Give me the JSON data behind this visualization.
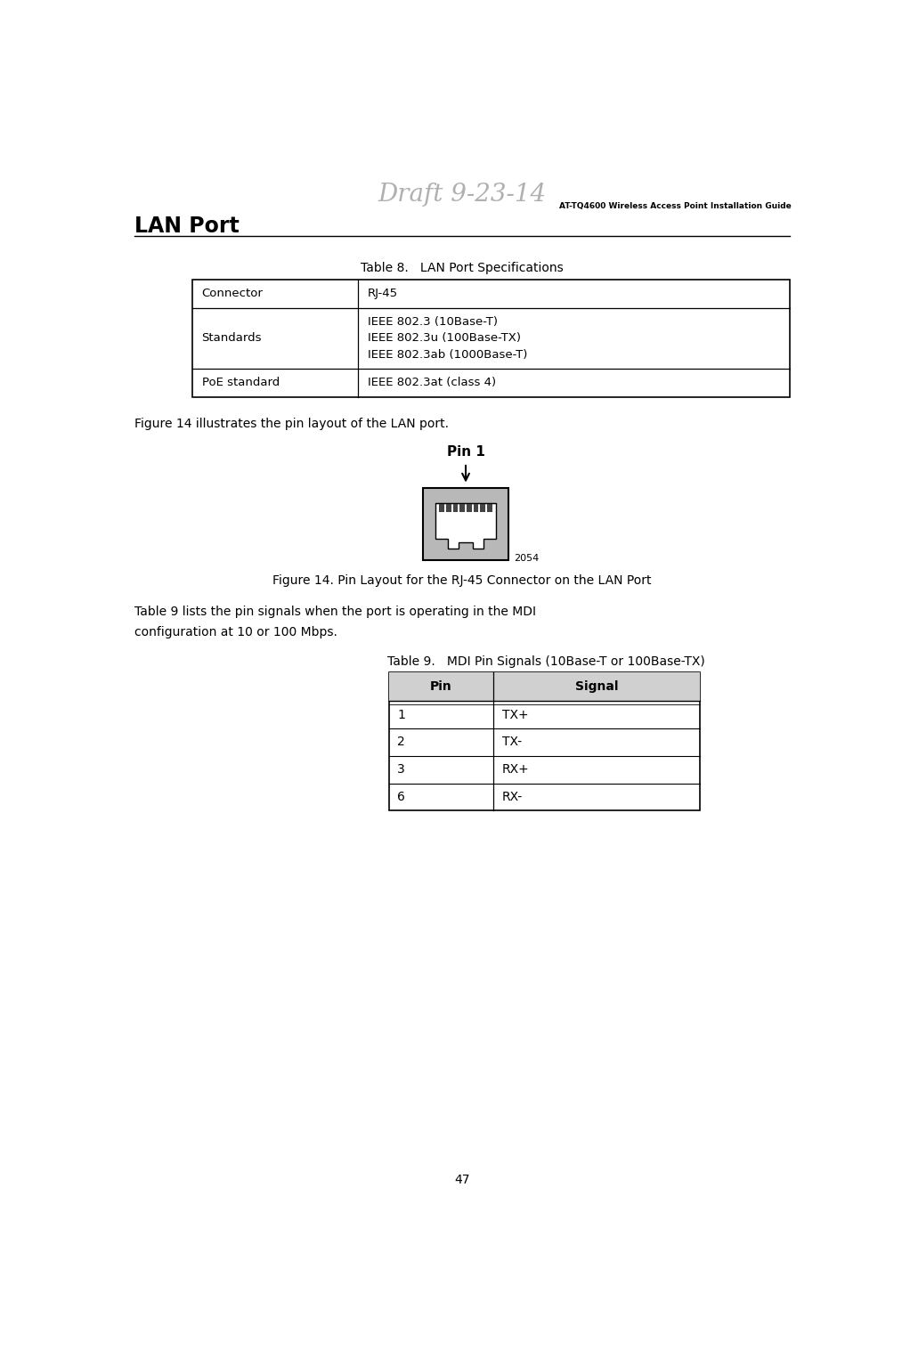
{
  "page_width": 10.13,
  "page_height": 15.16,
  "bg_color": "#ffffff",
  "draft_watermark": "Draft 9-23-14",
  "header_right": "AT-TQ4600 Wireless Access Point Installation Guide",
  "section_title": "LAN Port",
  "page_number": "47",
  "table8_title": "Table 8.   LAN Port Specifications",
  "table8_rows": [
    [
      "Connector",
      "RJ-45"
    ],
    [
      "Standards",
      "IEEE 802.3 (10Base-T)\nIEEE 802.3u (100Base-TX)\nIEEE 802.3ab (1000Base-T)"
    ],
    [
      "PoE standard",
      "IEEE 802.3at (class 4)"
    ]
  ],
  "figure14_text": "Figure 14 illustrates the pin layout of the LAN port.",
  "figure14_caption": "Figure 14. Pin Layout for the RJ-45 Connector on the LAN Port",
  "figure14_label": "Pin 1",
  "figure14_number": "2054",
  "table9_title": "Table 9.   MDI Pin Signals (10Base-T or 100Base-TX)",
  "table9_header": [
    "Pin",
    "Signal"
  ],
  "table9_rows": [
    [
      "1",
      "TX+"
    ],
    [
      "2",
      "TX-"
    ],
    [
      "3",
      "RX+"
    ],
    [
      "6",
      "RX-"
    ]
  ],
  "body_text_line1": "Table 9 lists the pin signals when the port is operating in the MDI",
  "body_text_line2": "configuration at 10 or 100 Mbps.",
  "page_number_str": "47"
}
